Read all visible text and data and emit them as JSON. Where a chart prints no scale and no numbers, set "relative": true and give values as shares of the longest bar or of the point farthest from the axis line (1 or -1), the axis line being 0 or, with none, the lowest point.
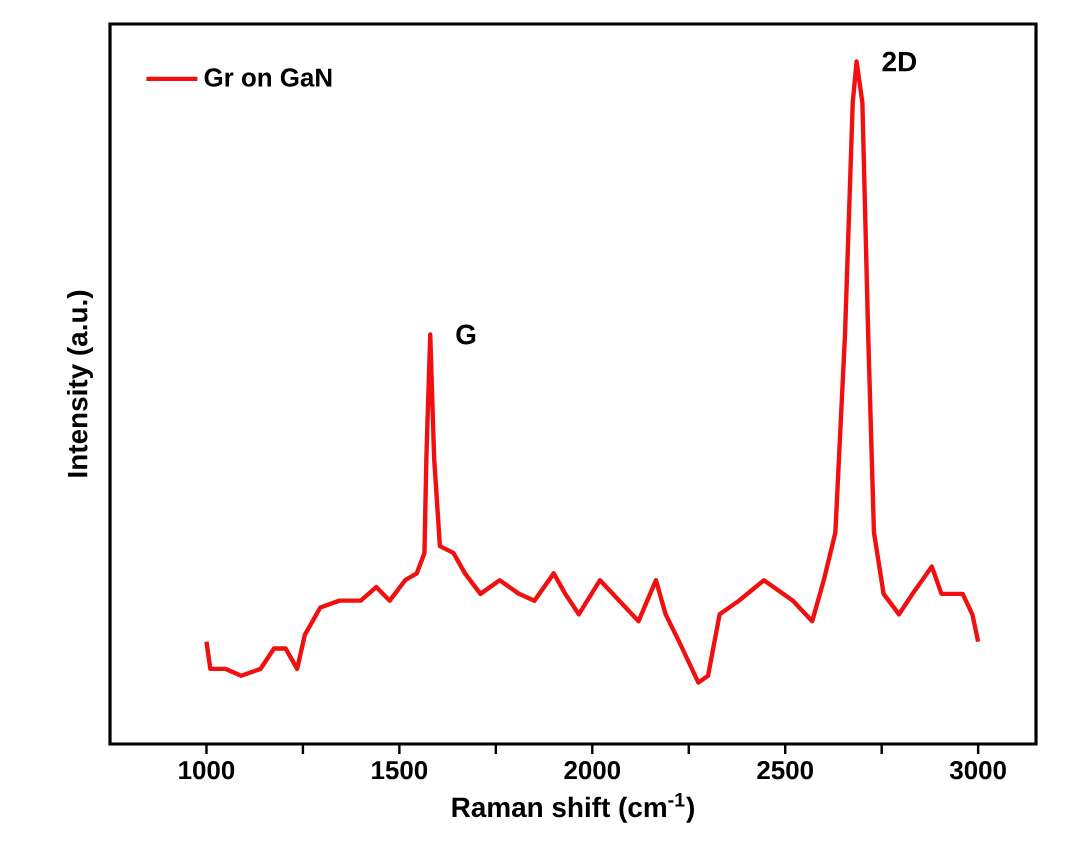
{
  "chart_data": {
    "type": "line",
    "relative": true,
    "xlabel": "Raman shift (cm$^{-1}$)",
    "ylabel": "Intensity (a.u.)",
    "xlim": [
      750,
      3150
    ],
    "xticks": [
      1000,
      {
        "value": 1250,
        "label": null
      },
      1500,
      {
        "value": 1750,
        "label": null
      },
      2000,
      {
        "value": 2250,
        "label": null
      },
      2500,
      {
        "value": 2750,
        "label": null
      },
      3000
    ],
    "grid": false,
    "legend": "top left",
    "marker": "none",
    "line_style": "solid",
    "annotations": [
      {
        "text": "G",
        "x": 1580,
        "y": 0.6
      },
      {
        "text": "2D",
        "x": 2685,
        "y": 1.0
      }
    ],
    "series": [
      {
        "name": "Gr on GaN",
        "color": "#f01010",
        "x": [
          1000,
          1010,
          1050,
          1090,
          1140,
          1175,
          1205,
          1235,
          1255,
          1295,
          1345,
          1400,
          1440,
          1475,
          1515,
          1545,
          1565,
          1570,
          1580,
          1590,
          1605,
          1640,
          1670,
          1710,
          1760,
          1810,
          1850,
          1900,
          1930,
          1965,
          2020,
          2070,
          2120,
          2165,
          2190,
          2225,
          2275,
          2300,
          2330,
          2380,
          2445,
          2520,
          2570,
          2600,
          2630,
          2655,
          2675,
          2685,
          2700,
          2715,
          2730,
          2755,
          2795,
          2830,
          2855,
          2880,
          2905,
          2960,
          2985,
          3000
        ],
        "values": [
          0.15,
          0.11,
          0.11,
          0.1,
          0.11,
          0.14,
          0.14,
          0.11,
          0.16,
          0.2,
          0.21,
          0.21,
          0.23,
          0.21,
          0.24,
          0.25,
          0.28,
          0.42,
          0.6,
          0.42,
          0.29,
          0.28,
          0.25,
          0.22,
          0.24,
          0.22,
          0.21,
          0.25,
          0.22,
          0.19,
          0.24,
          0.21,
          0.18,
          0.24,
          0.19,
          0.15,
          0.09,
          0.1,
          0.19,
          0.21,
          0.24,
          0.21,
          0.18,
          0.24,
          0.31,
          0.6,
          0.94,
          1.0,
          0.94,
          0.6,
          0.31,
          0.22,
          0.19,
          0.22,
          0.24,
          0.26,
          0.22,
          0.22,
          0.19,
          0.15
        ]
      }
    ]
  }
}
